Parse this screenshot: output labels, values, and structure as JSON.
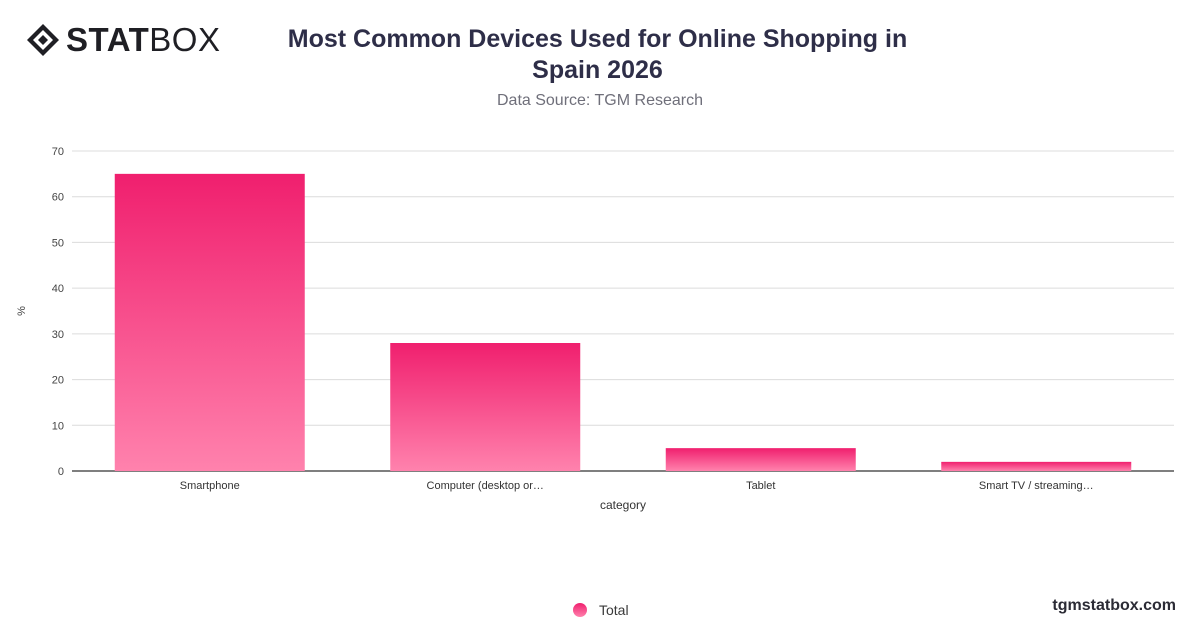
{
  "brand": {
    "logo_strong": "STAT",
    "logo_light": "BOX",
    "website": "tgmstatbox.com"
  },
  "header": {
    "title": "Most Common Devices Used for Online Shopping in Spain 2026",
    "subtitle": "Data Source: TGM Research"
  },
  "legend": {
    "label": "Total"
  },
  "colors": {
    "bar_top": "#f01f6e",
    "bar_bottom": "#ff82ad",
    "grid": "#dcdcdc",
    "axis": "#333333"
  },
  "chart_data": {
    "type": "bar",
    "categories": [
      "Smartphone",
      "Computer (desktop or…",
      "Tablet",
      "Smart TV / streaming…"
    ],
    "series": [
      {
        "name": "Total",
        "values": [
          65,
          28,
          5,
          2
        ]
      }
    ],
    "xlabel": "category",
    "ylabel": "%",
    "ylim": [
      0,
      70
    ],
    "yticks": [
      0,
      10,
      20,
      30,
      40,
      50,
      60,
      70
    ],
    "grid": true,
    "legend_position": "bottom-center"
  }
}
